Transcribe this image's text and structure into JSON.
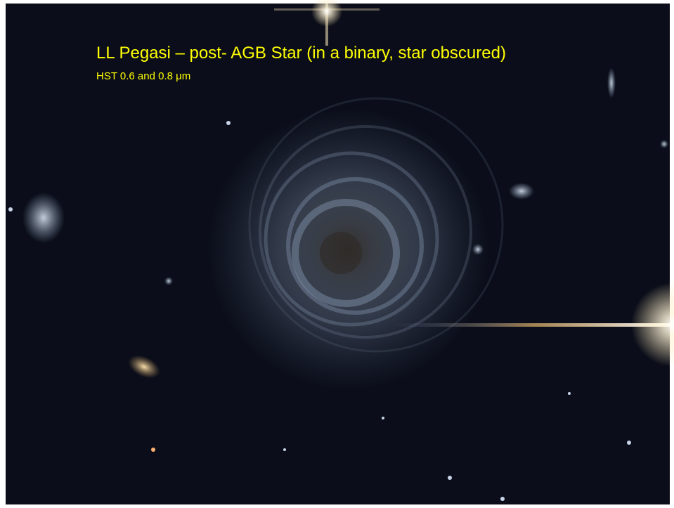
{
  "slide": {
    "title": "LL Pegasi – post- AGB Star (in a binary, star obscured)",
    "subtitle": "HST 0.6 and 0.8 μm"
  }
}
